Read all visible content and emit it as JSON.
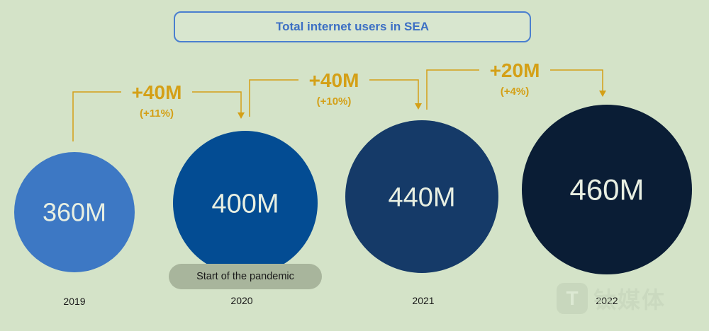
{
  "chart_data": {
    "type": "bubble",
    "title": "Total internet users in SEA",
    "categories": [
      "2019",
      "2020",
      "2021",
      "2022"
    ],
    "values": [
      360,
      400,
      440,
      460
    ],
    "unit": "M",
    "value_labels": [
      "360M",
      "400M",
      "440M",
      "460M"
    ],
    "changes": [
      {
        "from": "2019",
        "to": "2020",
        "label": "+40M",
        "pct": "(+11%)"
      },
      {
        "from": "2020",
        "to": "2021",
        "label": "+40M",
        "pct": "(+10%)"
      },
      {
        "from": "2021",
        "to": "2022",
        "label": "+20M",
        "pct": "(+4%)"
      }
    ],
    "annotation": "Start of the pandemic",
    "colors": [
      "#3d78c4",
      "#034c93",
      "#153a68",
      "#0a1d35"
    ],
    "arrow_color": "#d4a017"
  },
  "watermark": {
    "logo": "T",
    "text": "钛媒体"
  }
}
